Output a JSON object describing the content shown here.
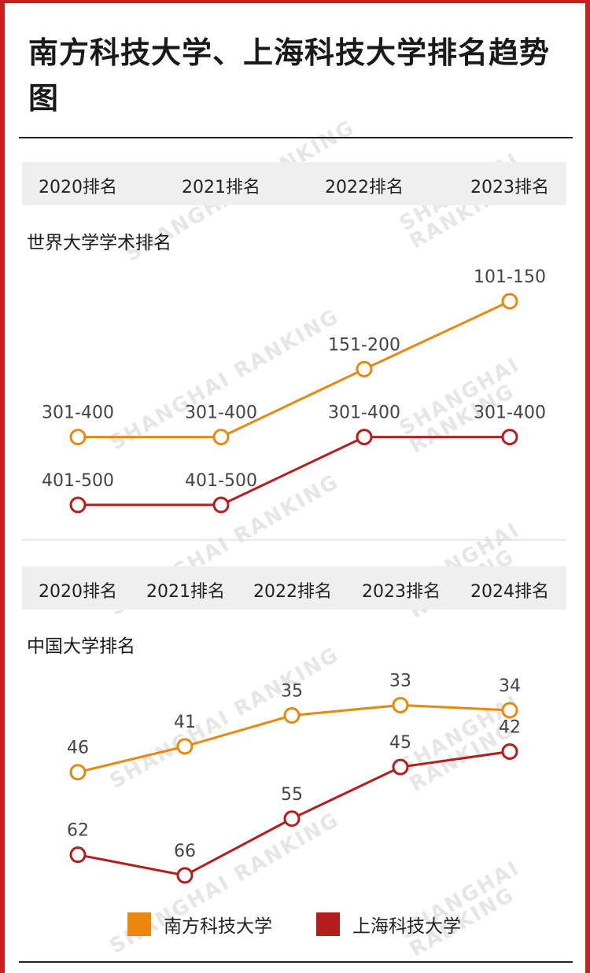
{
  "title": "南方科技大学、上海科技大学排名趋势图",
  "colors": {
    "sustech": "#E8890E",
    "shanghaitech": "#B51C1C",
    "band": "#efefef",
    "frame": "#c8201e"
  },
  "watermark": "SHANGHAI RANKING",
  "chart_data": [
    {
      "type": "line",
      "title": "世界大学学术排名",
      "categories": [
        "2020排名",
        "2021排名",
        "2022排名",
        "2023排名"
      ],
      "series": [
        {
          "name": "南方科技大学",
          "values": [
            3,
            3,
            2,
            1
          ],
          "labels": [
            "301-400",
            "301-400",
            "151-200",
            "101-150"
          ]
        },
        {
          "name": "上海科技大学",
          "values": [
            4,
            4,
            3,
            3
          ],
          "labels": [
            "401-500",
            "401-500",
            "301-400",
            "301-400"
          ]
        }
      ]
    },
    {
      "type": "line",
      "title": "中国大学排名",
      "categories": [
        "2020排名",
        "2021排名",
        "2022排名",
        "2023排名",
        "2024排名"
      ],
      "series": [
        {
          "name": "南方科技大学",
          "values": [
            46,
            41,
            35,
            33,
            34
          ]
        },
        {
          "name": "上海科技大学",
          "values": [
            62,
            66,
            55,
            45,
            42
          ]
        }
      ]
    }
  ],
  "legend": [
    {
      "label": "南方科技大学"
    },
    {
      "label": "上海科技大学"
    }
  ]
}
